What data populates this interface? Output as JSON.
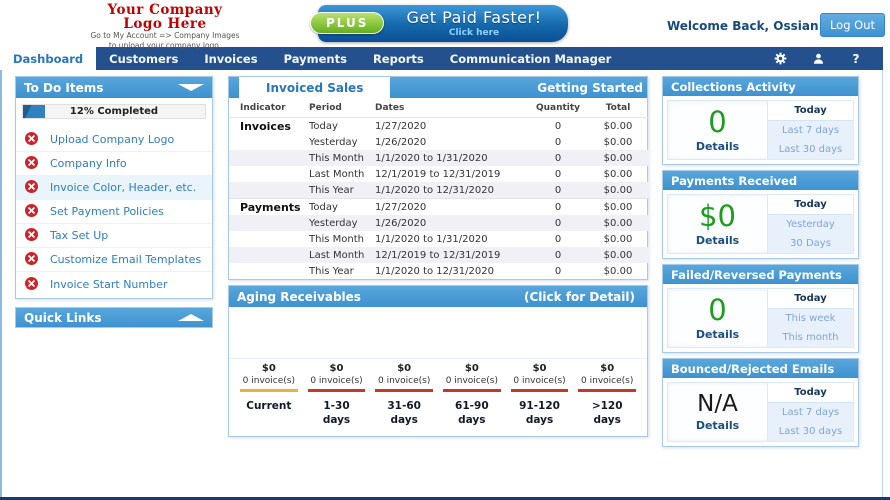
{
  "header": {
    "logo": {
      "line1": "Your Company",
      "line2": "Logo Here",
      "subtext1": "Go to My Account => Company Images",
      "subtext2": "to upload your company logo."
    },
    "banner": {
      "badge": "PLUS",
      "title": "Get Paid Faster!",
      "subtitle": "Click here"
    },
    "welcome_text": "Welcome Back, Ossian!",
    "logout_label": "Log Out"
  },
  "nav": {
    "items": [
      {
        "label": "Dashboard",
        "active": true
      },
      {
        "label": "Customers",
        "active": false
      },
      {
        "label": "Invoices",
        "active": false
      },
      {
        "label": "Payments",
        "active": false
      },
      {
        "label": "Reports",
        "active": false
      },
      {
        "label": "Communication Manager",
        "active": false
      }
    ],
    "icons": [
      {
        "name": "gear-icon"
      },
      {
        "name": "user-icon"
      },
      {
        "name": "help-icon",
        "glyph": "?"
      }
    ]
  },
  "sidebar": {
    "todo": {
      "title": "To Do Items",
      "progress_label": "12% Completed",
      "progress_percent": 12,
      "items": [
        "Upload Company Logo",
        "Company Info",
        "Invoice Color, Header, etc.",
        "Set Payment Policies",
        "Tax Set Up",
        "Customize Email Templates",
        "Invoice Start Number"
      ]
    },
    "quick_links_title": "Quick Links"
  },
  "invoiced_sales": {
    "tab_label": "Invoiced Sales",
    "header_link": "Getting Started",
    "columns": [
      "Indicator",
      "Period",
      "Dates",
      "Quantity",
      "Total"
    ],
    "rows": [
      {
        "indicator": "Invoices",
        "period": "Today",
        "dates": "1/27/2020",
        "quantity": "0",
        "total": "$0.00"
      },
      {
        "indicator": "",
        "period": "Yesterday",
        "dates": "1/26/2020",
        "quantity": "0",
        "total": "$0.00"
      },
      {
        "indicator": "",
        "period": "This Month",
        "dates": "1/1/2020 to 1/31/2020",
        "quantity": "0",
        "total": "$0.00"
      },
      {
        "indicator": "",
        "period": "Last Month",
        "dates": "12/1/2019 to 12/31/2019",
        "quantity": "0",
        "total": "$0.00"
      },
      {
        "indicator": "",
        "period": "This Year",
        "dates": "1/1/2020 to 12/31/2020",
        "quantity": "0",
        "total": "$0.00"
      },
      {
        "indicator": "Payments",
        "period": "Today",
        "dates": "1/27/2020",
        "quantity": "0",
        "total": "$0.00"
      },
      {
        "indicator": "",
        "period": "Yesterday",
        "dates": "1/26/2020",
        "quantity": "0",
        "total": "$0.00"
      },
      {
        "indicator": "",
        "period": "This Month",
        "dates": "1/1/2020 to 1/31/2020",
        "quantity": "0",
        "total": "$0.00"
      },
      {
        "indicator": "",
        "period": "Last Month",
        "dates": "12/1/2019 to 12/31/2019",
        "quantity": "0",
        "total": "$0.00"
      },
      {
        "indicator": "",
        "period": "This Year",
        "dates": "1/1/2020 to 12/31/2020",
        "quantity": "0",
        "total": "$0.00"
      }
    ]
  },
  "aging_receivables": {
    "title": "Aging Receivables",
    "header_link": "(Click for Detail)",
    "chart_data": {
      "type": "bar",
      "categories": [
        "Current",
        "1-30 days",
        "31-60 days",
        "61-90 days",
        "91-120 days",
        ">120 days"
      ],
      "amounts": [
        "$0",
        "$0",
        "$0",
        "$0",
        "$0",
        "$0"
      ],
      "values": [
        0,
        0,
        0,
        0,
        0,
        0
      ],
      "invoice_counts": [
        "0 invoice(s)",
        "0 invoice(s)",
        "0 invoice(s)",
        "0 invoice(s)",
        "0 invoice(s)",
        "0 invoice(s)"
      ],
      "bar_colors": [
        "#E6B33F",
        "#C0392B",
        "#C0392B",
        "#C0392B",
        "#C0392B",
        "#C0392B"
      ]
    }
  },
  "stat_panels": [
    {
      "title": "Collections Activity",
      "value": "0",
      "value_color": "#1E9C1E",
      "details_label": "Details",
      "tabs": [
        {
          "label": "Today",
          "active": true
        },
        {
          "label": "Last 7 days",
          "active": false
        },
        {
          "label": "Last 30 days",
          "active": false
        }
      ]
    },
    {
      "title": "Payments Received",
      "value": "$0",
      "value_color": "#1E9C1E",
      "details_label": "Details",
      "tabs": [
        {
          "label": "Today",
          "active": true
        },
        {
          "label": "Yesterday",
          "active": false
        },
        {
          "label": "30 Days",
          "active": false
        }
      ]
    },
    {
      "title": "Failed/Reversed Payments",
      "value": "0",
      "value_color": "#1E9C1E",
      "details_label": "Details",
      "tabs": [
        {
          "label": "Today",
          "active": true
        },
        {
          "label": "This week",
          "active": false
        },
        {
          "label": "This month",
          "active": false
        }
      ]
    },
    {
      "title": "Bounced/Rejected Emails",
      "value": "N/A",
      "value_color": "#1A1A1A",
      "details_label": "Details",
      "tabs": [
        {
          "label": "Today",
          "active": true
        },
        {
          "label": "Last 7 days",
          "active": false
        },
        {
          "label": "Last 30 days",
          "active": false
        }
      ]
    }
  ]
}
